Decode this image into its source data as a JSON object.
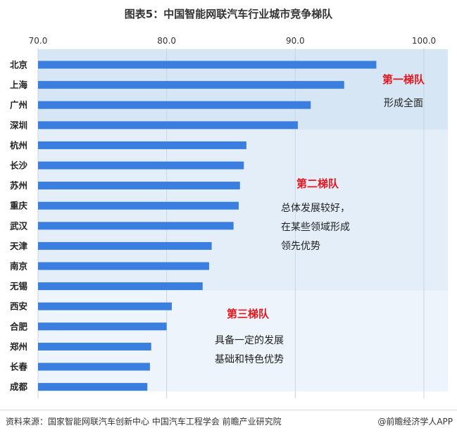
{
  "title": "图表5：中国智能网联汽车行业城市竞争梯队",
  "source": "资料来源：国家智能网联汽车创新中心 中国汽车工程学会 前瞻产业研究院",
  "brand": "@前瞻经济学人APP",
  "chart_data": {
    "type": "bar",
    "orientation": "horizontal",
    "xlim": [
      70,
      100
    ],
    "xticks": [
      "70.0",
      "80.0",
      "90.0",
      "100.0"
    ],
    "grid": true,
    "bar_color": "#3a7ee0",
    "categories": [
      "北京",
      "上海",
      "广州",
      "深圳",
      "杭州",
      "长沙",
      "苏州",
      "重庆",
      "武汉",
      "天津",
      "南京",
      "无锡",
      "西安",
      "合肥",
      "郑州",
      "长春",
      "成都"
    ],
    "values": [
      96.3,
      93.8,
      91.2,
      90.2,
      86.2,
      86.0,
      85.7,
      85.6,
      85.2,
      83.5,
      83.3,
      82.8,
      80.4,
      80.0,
      78.8,
      78.7,
      78.5
    ],
    "tiers": [
      {
        "name": "第一梯队",
        "desc": [
          "形成全面"
        ],
        "from": 0,
        "to": 3,
        "bg": "#d6e6f5"
      },
      {
        "name": "第二梯队",
        "desc": [
          "总体发展较好，",
          "在某些领域形成",
          "领先优势"
        ],
        "from": 4,
        "to": 11,
        "bg": "#e3eef9"
      },
      {
        "name": "第三梯队",
        "desc": [
          "具备一定的发展",
          "基础和特色优势"
        ],
        "from": 12,
        "to": 16,
        "bg": "#edf4fb"
      }
    ],
    "tier_name_color": "#e8141b"
  }
}
